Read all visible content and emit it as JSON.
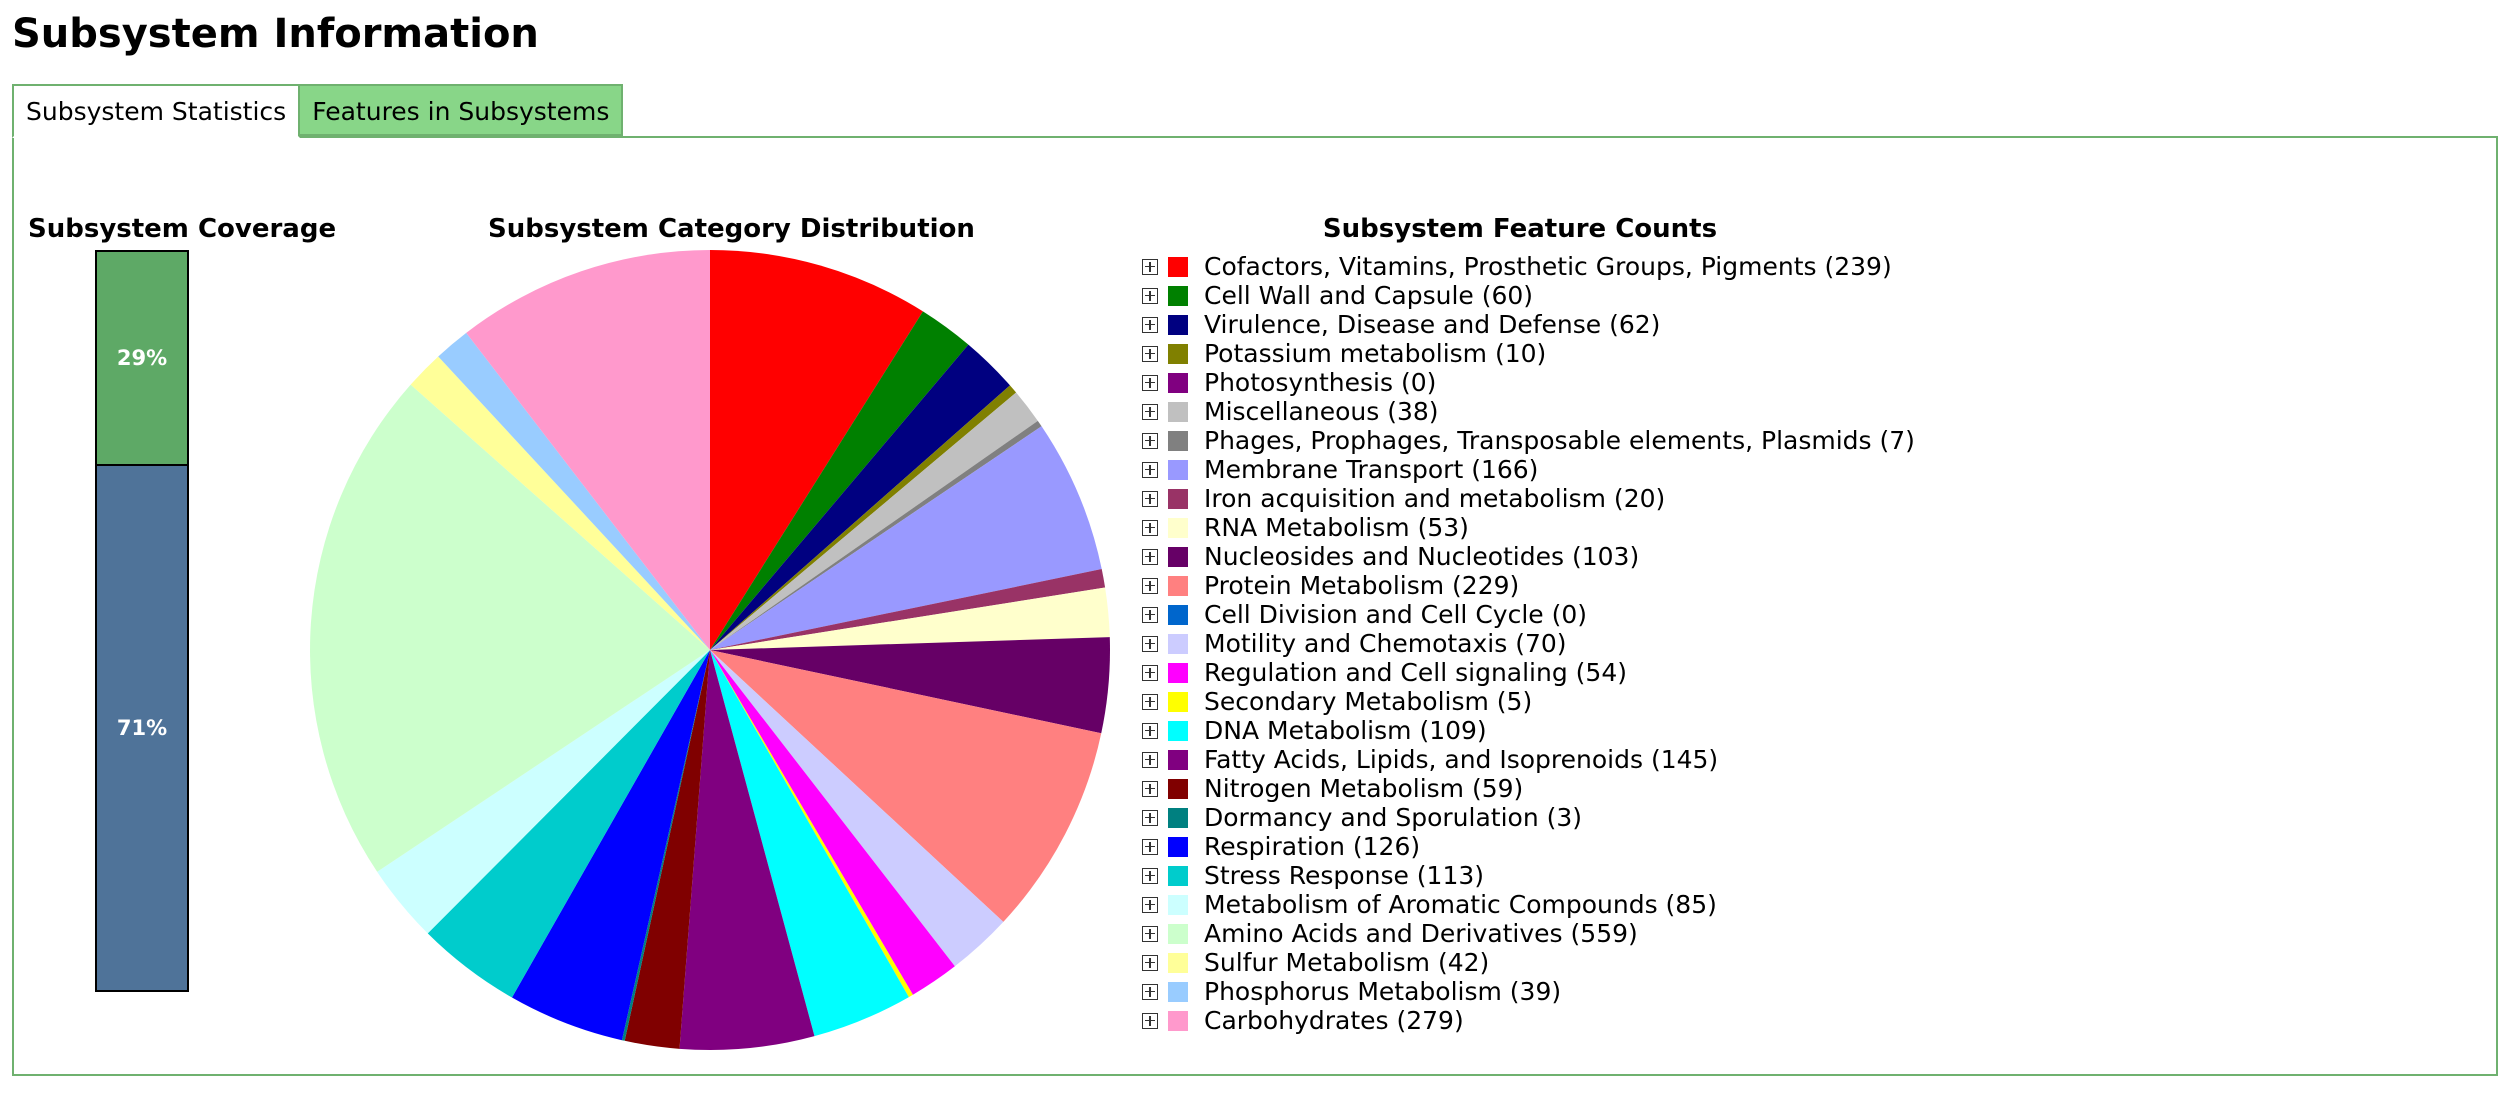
{
  "page": {
    "title": "Subsystem Information"
  },
  "tabs": [
    {
      "label": "Subsystem Statistics",
      "active": true
    },
    {
      "label": "Features in Subsystems",
      "active": false
    }
  ],
  "coverage": {
    "title": "Subsystem Coverage",
    "covered_label": "29%",
    "uncovered_label": "71%",
    "covered_fraction": 0.29,
    "covered_color": "#5ea966",
    "uncovered_color": "#4f7399"
  },
  "distribution": {
    "title": "Subsystem Category Distribution"
  },
  "feature_counts": {
    "title": "Subsystem Feature Counts"
  },
  "chart_data": {
    "type": "pie",
    "categories": [
      "Cofactors, Vitamins, Prosthetic Groups, Pigments",
      "Cell Wall and Capsule",
      "Virulence, Disease and Defense",
      "Potassium metabolism",
      "Photosynthesis",
      "Miscellaneous",
      "Phages, Prophages, Transposable elements, Plasmids",
      "Membrane Transport",
      "Iron acquisition and metabolism",
      "RNA Metabolism",
      "Nucleosides and Nucleotides",
      "Protein Metabolism",
      "Cell Division and Cell Cycle",
      "Motility and Chemotaxis",
      "Regulation and Cell signaling",
      "Secondary Metabolism",
      "DNA Metabolism",
      "Fatty Acids, Lipids, and Isoprenoids",
      "Nitrogen Metabolism",
      "Dormancy and Sporulation",
      "Respiration",
      "Stress Response",
      "Metabolism of Aromatic Compounds",
      "Amino Acids and Derivatives",
      "Sulfur Metabolism",
      "Phosphorus Metabolism",
      "Carbohydrates"
    ],
    "values": [
      239,
      60,
      62,
      10,
      0,
      38,
      7,
      166,
      20,
      53,
      103,
      229,
      0,
      70,
      54,
      5,
      109,
      145,
      59,
      3,
      126,
      113,
      85,
      559,
      42,
      39,
      279
    ],
    "labels": [
      "Cofactors, Vitamins, Prosthetic Groups, Pigments (239)",
      "Cell Wall and Capsule (60)",
      "Virulence, Disease and Defense (62)",
      "Potassium metabolism (10)",
      "Photosynthesis (0)",
      "Miscellaneous (38)",
      "Phages, Prophages, Transposable elements, Plasmids (7)",
      "Membrane Transport (166)",
      "Iron acquisition and metabolism (20)",
      "RNA Metabolism (53)",
      "Nucleosides and Nucleotides (103)",
      "Protein Metabolism (229)",
      "Cell Division and Cell Cycle (0)",
      "Motility and Chemotaxis (70)",
      "Regulation and Cell signaling (54)",
      "Secondary Metabolism (5)",
      "DNA Metabolism (109)",
      "Fatty Acids, Lipids, and Isoprenoids (145)",
      "Nitrogen Metabolism (59)",
      "Dormancy and Sporulation (3)",
      "Respiration (126)",
      "Stress Response (113)",
      "Metabolism of Aromatic Compounds (85)",
      "Amino Acids and Derivatives (559)",
      "Sulfur Metabolism (42)",
      "Phosphorus Metabolism (39)",
      "Carbohydrates (279)"
    ],
    "colors": [
      "#ff0000",
      "#008000",
      "#000080",
      "#808000",
      "#800080",
      "#c0c0c0",
      "#808080",
      "#9999ff",
      "#993366",
      "#ffffcc",
      "#660066",
      "#ff8080",
      "#0066cc",
      "#ccccff",
      "#ff00ff",
      "#ffff00",
      "#00ffff",
      "#800080",
      "#800000",
      "#008080",
      "#0000ff",
      "#00cccc",
      "#ccffff",
      "#ccffcc",
      "#ffff99",
      "#99ccff",
      "#ff99cc"
    ],
    "title": "Subsystem Category Distribution",
    "legend": "right",
    "start_angle": "top, clockwise"
  }
}
